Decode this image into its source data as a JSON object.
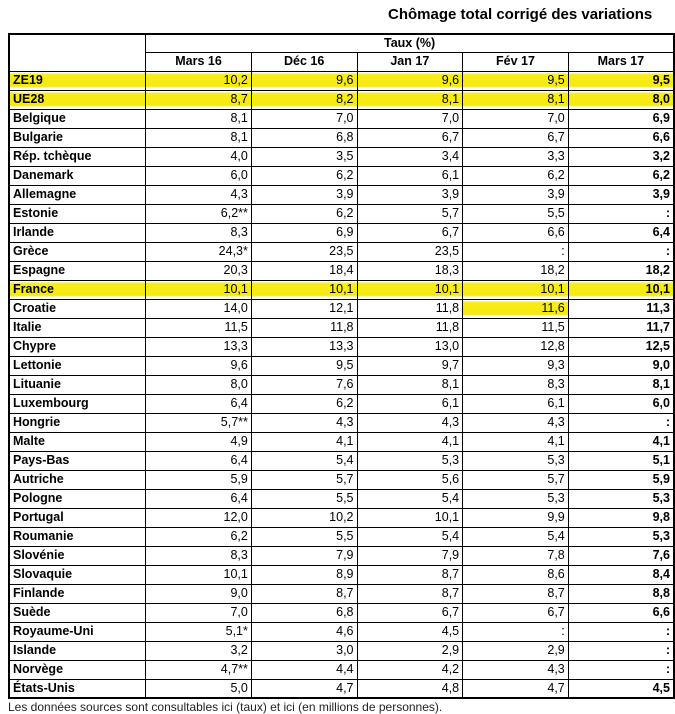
{
  "title": "Chômage total corrigé des variations",
  "highlight_color": "#f5e90f",
  "table": {
    "group_header": "Taux (%)",
    "columns": [
      "Mars 16",
      "Déc 16",
      "Jan 17",
      "Fév 17",
      "Mars 17"
    ],
    "rows": [
      {
        "name": "ZE19",
        "values": [
          "10,2",
          "9,6",
          "9,6",
          "9,5",
          "9,5"
        ],
        "highlight": true
      },
      {
        "name": "UE28",
        "values": [
          "8,7",
          "8,2",
          "8,1",
          "8,1",
          "8,0"
        ],
        "highlight": true
      },
      {
        "name": "Belgique",
        "values": [
          "8,1",
          "7,0",
          "7,0",
          "7,0",
          "6,9"
        ],
        "highlight": false
      },
      {
        "name": "Bulgarie",
        "values": [
          "8,1",
          "6,8",
          "6,7",
          "6,7",
          "6,6"
        ],
        "highlight": false
      },
      {
        "name": "Rép. tchèque",
        "values": [
          "4,0",
          "3,5",
          "3,4",
          "3,3",
          "3,2"
        ],
        "highlight": false
      },
      {
        "name": "Danemark",
        "values": [
          "6,0",
          "6,2",
          "6,1",
          "6,2",
          "6,2"
        ],
        "highlight": false
      },
      {
        "name": "Allemagne",
        "values": [
          "4,3",
          "3,9",
          "3,9",
          "3,9",
          "3,9"
        ],
        "highlight": false
      },
      {
        "name": "Estonie",
        "values": [
          "6,2**",
          "6,2",
          "5,7",
          "5,5",
          ":"
        ],
        "highlight": false
      },
      {
        "name": "Irlande",
        "values": [
          "8,3",
          "6,9",
          "6,7",
          "6,6",
          "6,4"
        ],
        "highlight": false
      },
      {
        "name": "Grèce",
        "values": [
          "24,3*",
          "23,5",
          "23,5",
          ":",
          ":"
        ],
        "highlight": false
      },
      {
        "name": "Espagne",
        "values": [
          "20,3",
          "18,4",
          "18,3",
          "18,2",
          "18,2"
        ],
        "highlight": false
      },
      {
        "name": "France",
        "values": [
          "10,1",
          "10,1",
          "10,1",
          "10,1",
          "10,1"
        ],
        "highlight": true
      },
      {
        "name": "Croatie",
        "values": [
          "14,0",
          "12,1",
          "11,8",
          "11,6",
          "11,3"
        ],
        "highlight": false,
        "highlight_cells": [
          3
        ]
      },
      {
        "name": "Italie",
        "values": [
          "11,5",
          "11,8",
          "11,8",
          "11,5",
          "11,7"
        ],
        "highlight": false
      },
      {
        "name": "Chypre",
        "values": [
          "13,3",
          "13,3",
          "13,0",
          "12,8",
          "12,5"
        ],
        "highlight": false
      },
      {
        "name": "Lettonie",
        "values": [
          "9,6",
          "9,5",
          "9,7",
          "9,3",
          "9,0"
        ],
        "highlight": false
      },
      {
        "name": "Lituanie",
        "values": [
          "8,0",
          "7,6",
          "8,1",
          "8,3",
          "8,1"
        ],
        "highlight": false
      },
      {
        "name": "Luxembourg",
        "values": [
          "6,4",
          "6,2",
          "6,1",
          "6,1",
          "6,0"
        ],
        "highlight": false
      },
      {
        "name": "Hongrie",
        "values": [
          "5,7**",
          "4,3",
          "4,3",
          "4,3",
          ":"
        ],
        "highlight": false
      },
      {
        "name": "Malte",
        "values": [
          "4,9",
          "4,1",
          "4,1",
          "4,1",
          "4,1"
        ],
        "highlight": false
      },
      {
        "name": "Pays-Bas",
        "values": [
          "6,4",
          "5,4",
          "5,3",
          "5,3",
          "5,1"
        ],
        "highlight": false
      },
      {
        "name": "Autriche",
        "values": [
          "5,9",
          "5,7",
          "5,6",
          "5,7",
          "5,9"
        ],
        "highlight": false
      },
      {
        "name": "Pologne",
        "values": [
          "6,4",
          "5,5",
          "5,4",
          "5,3",
          "5,3"
        ],
        "highlight": false
      },
      {
        "name": "Portugal",
        "values": [
          "12,0",
          "10,2",
          "10,1",
          "9,9",
          "9,8"
        ],
        "highlight": false
      },
      {
        "name": "Roumanie",
        "values": [
          "6,2",
          "5,5",
          "5,4",
          "5,4",
          "5,3"
        ],
        "highlight": false
      },
      {
        "name": "Slovénie",
        "values": [
          "8,3",
          "7,9",
          "7,9",
          "7,8",
          "7,6"
        ],
        "highlight": false
      },
      {
        "name": "Slovaquie",
        "values": [
          "10,1",
          "8,9",
          "8,7",
          "8,6",
          "8,4"
        ],
        "highlight": false
      },
      {
        "name": "Finlande",
        "values": [
          "9,0",
          "8,7",
          "8,7",
          "8,7",
          "8,8"
        ],
        "highlight": false
      },
      {
        "name": "Suède",
        "values": [
          "7,0",
          "6,8",
          "6,7",
          "6,7",
          "6,6"
        ],
        "highlight": false
      },
      {
        "name": "Royaume-Uni",
        "values": [
          "5,1*",
          "4,6",
          "4,5",
          ":",
          ":"
        ],
        "highlight": false
      },
      {
        "name": "Islande",
        "values": [
          "3,2",
          "3,0",
          "2,9",
          "2,9",
          ":"
        ],
        "highlight": false
      },
      {
        "name": "Norvège",
        "values": [
          "4,7**",
          "4,4",
          "4,2",
          "4,3",
          ":"
        ],
        "highlight": false
      },
      {
        "name": "États-Unis",
        "values": [
          "5,0",
          "4,7",
          "4,8",
          "4,7",
          "4,5"
        ],
        "highlight": false
      }
    ]
  },
  "footer": "Les données sources sont consultables ici (taux) et ici (en millions de personnes)."
}
